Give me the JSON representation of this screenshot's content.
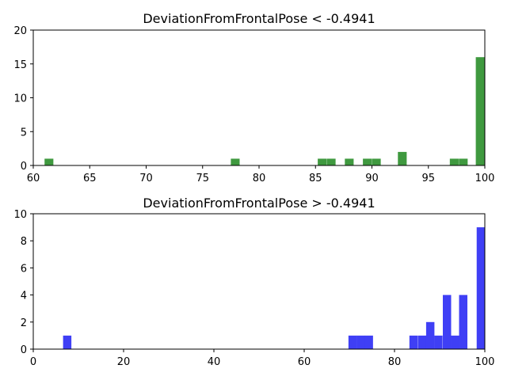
{
  "chart_data": [
    {
      "type": "bar",
      "title": "DeviationFromFrontalPose < -0.4941",
      "xlabel": "",
      "ylabel": "",
      "xlim": [
        60,
        100
      ],
      "ylim": [
        0,
        20
      ],
      "x_ticks": [
        60,
        65,
        70,
        75,
        80,
        85,
        90,
        95,
        100
      ],
      "y_ticks": [
        0,
        5,
        10,
        15,
        20
      ],
      "grid": false,
      "color": "#3f993f",
      "bin_width": 0.78,
      "bins": [
        {
          "x": 61.0,
          "value": 1
        },
        {
          "x": 77.5,
          "value": 1
        },
        {
          "x": 85.2,
          "value": 1
        },
        {
          "x": 86.0,
          "value": 1
        },
        {
          "x": 87.6,
          "value": 1
        },
        {
          "x": 89.2,
          "value": 1
        },
        {
          "x": 90.0,
          "value": 1
        },
        {
          "x": 92.3,
          "value": 2
        },
        {
          "x": 96.9,
          "value": 1
        },
        {
          "x": 97.7,
          "value": 1
        },
        {
          "x": 99.2,
          "value": 16
        }
      ]
    },
    {
      "type": "bar",
      "title": "DeviationFromFrontalPose > -0.4941",
      "xlabel": "",
      "ylabel": "",
      "xlim": [
        0,
        100
      ],
      "ylim": [
        0,
        10
      ],
      "x_ticks": [
        0,
        20,
        40,
        60,
        80,
        100
      ],
      "y_ticks": [
        0,
        2,
        4,
        6,
        8,
        10
      ],
      "grid": false,
      "color": "#3f3ff5",
      "bin_width": 1.84,
      "bins": [
        {
          "x": 6.6,
          "value": 1
        },
        {
          "x": 69.8,
          "value": 1
        },
        {
          "x": 71.6,
          "value": 1
        },
        {
          "x": 73.4,
          "value": 1
        },
        {
          "x": 83.3,
          "value": 1
        },
        {
          "x": 85.2,
          "value": 1
        },
        {
          "x": 87.0,
          "value": 2
        },
        {
          "x": 88.8,
          "value": 1
        },
        {
          "x": 90.7,
          "value": 4
        },
        {
          "x": 92.5,
          "value": 1
        },
        {
          "x": 94.3,
          "value": 4
        },
        {
          "x": 98.2,
          "value": 9
        }
      ]
    }
  ]
}
